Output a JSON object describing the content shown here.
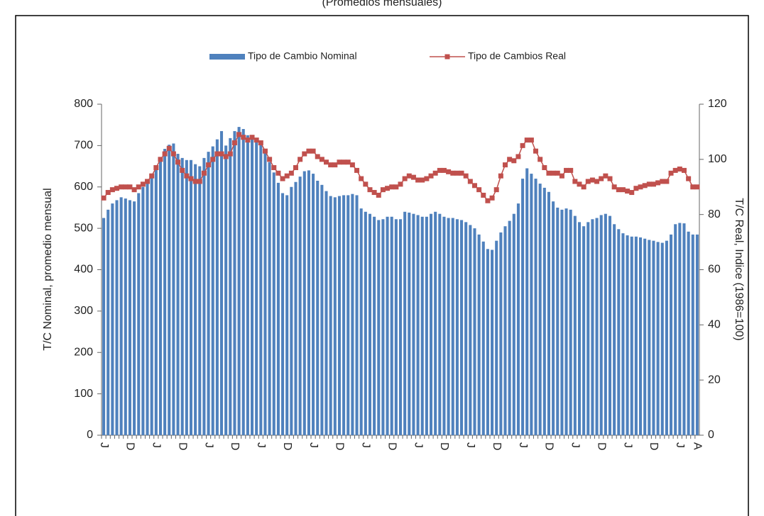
{
  "chart_data": {
    "type": "bar_line",
    "title": "(Promedios mensuales)",
    "ylabel": "T/C Nominal, promedio mensual",
    "y2label": "T/C Real, Indice (1986=100)",
    "categories": [
      "J",
      null,
      null,
      null,
      null,
      null,
      "D",
      null,
      null,
      null,
      null,
      null,
      "J",
      null,
      null,
      null,
      null,
      null,
      "D",
      null,
      null,
      null,
      null,
      null,
      "J",
      null,
      null,
      null,
      null,
      null,
      "D",
      null,
      null,
      null,
      null,
      null,
      "J",
      null,
      null,
      null,
      null,
      null,
      "D",
      null,
      null,
      null,
      null,
      null,
      "J",
      null,
      null,
      null,
      null,
      null,
      "D",
      null,
      null,
      null,
      null,
      null,
      "J",
      null,
      null,
      null,
      null,
      null,
      "D",
      null,
      null,
      null,
      null,
      null,
      "J",
      null,
      null,
      null,
      null,
      null,
      "D",
      null,
      null,
      null,
      null,
      null,
      "J",
      null,
      null,
      null,
      null,
      null,
      "D",
      null,
      null,
      null,
      null,
      null,
      "J",
      null,
      null,
      null,
      null,
      null,
      "D",
      null,
      null,
      null,
      null,
      null,
      "J",
      null,
      null,
      null,
      null,
      null,
      "D",
      null,
      null,
      null,
      null,
      null,
      "J",
      null,
      null,
      null,
      null,
      null,
      "D",
      null,
      null,
      null,
      null,
      null,
      "J",
      null,
      null,
      null,
      "A"
    ],
    "series": [
      {
        "name": "Tipo de Cambio Nominal",
        "type": "bar",
        "color": "#4f81bd",
        "values": [
          525,
          545,
          560,
          568,
          575,
          572,
          568,
          565,
          585,
          600,
          612,
          625,
          650,
          670,
          692,
          702,
          705,
          680,
          670,
          665,
          665,
          655,
          650,
          670,
          685,
          698,
          715,
          735,
          700,
          718,
          735,
          745,
          740,
          725,
          715,
          710,
          705,
          690,
          660,
          635,
          610,
          585,
          580,
          600,
          612,
          625,
          638,
          640,
          632,
          615,
          605,
          590,
          578,
          575,
          578,
          580,
          580,
          583,
          580,
          548,
          540,
          535,
          528,
          520,
          522,
          528,
          528,
          522,
          522,
          540,
          538,
          535,
          532,
          528,
          528,
          535,
          540,
          535,
          528,
          525,
          525,
          522,
          520,
          515,
          508,
          500,
          485,
          468,
          450,
          448,
          470,
          490,
          505,
          518,
          535,
          560,
          620,
          645,
          632,
          620,
          608,
          598,
          588,
          565,
          550,
          545,
          548,
          545,
          530,
          515,
          505,
          515,
          522,
          525,
          532,
          535,
          530,
          510,
          498,
          488,
          483,
          480,
          480,
          478,
          475,
          472,
          470,
          467,
          465,
          470,
          485,
          510,
          513,
          512,
          492,
          485,
          485
        ]
      },
      {
        "name": "Tipo de Cambios Real",
        "type": "line",
        "axis": "y2",
        "color": "#c0504d",
        "values": [
          86,
          88,
          89,
          89.5,
          90,
          90,
          90,
          89,
          90,
          91,
          92,
          94,
          97,
          100,
          102,
          104,
          102,
          99,
          96,
          94,
          93,
          92,
          92,
          95,
          98,
          100,
          102,
          102,
          101,
          102,
          106,
          109,
          108,
          107,
          108,
          107,
          106,
          103,
          100,
          97,
          95,
          93,
          94,
          95,
          97,
          100,
          102,
          103,
          103,
          101,
          100,
          99,
          98,
          98,
          99,
          99,
          99,
          98,
          96,
          93,
          91,
          89,
          88,
          87,
          89,
          89.5,
          90,
          90,
          91,
          93,
          94,
          93.5,
          92.5,
          92.5,
          93,
          94,
          95,
          96,
          96,
          95.5,
          95,
          95,
          95,
          94,
          92,
          90.5,
          89,
          87,
          85,
          86,
          89,
          94,
          98,
          100,
          99.5,
          101,
          105,
          107,
          107,
          103,
          100,
          97,
          95,
          95,
          95,
          94,
          96,
          96,
          92,
          91,
          90,
          92,
          92.5,
          92,
          93,
          94,
          93,
          90,
          89,
          89,
          88.5,
          88,
          89.5,
          90,
          90.5,
          91,
          91,
          91.5,
          92,
          92,
          95,
          96,
          96.5,
          96,
          93,
          90,
          90
        ]
      }
    ],
    "ylim": [
      0,
      800
    ],
    "yticks": [
      0,
      100,
      200,
      300,
      400,
      500,
      600,
      700,
      800
    ],
    "y2lim": [
      0,
      120
    ],
    "y2ticks": [
      0,
      20,
      40,
      60,
      80,
      100,
      120
    ],
    "legend": "top"
  }
}
